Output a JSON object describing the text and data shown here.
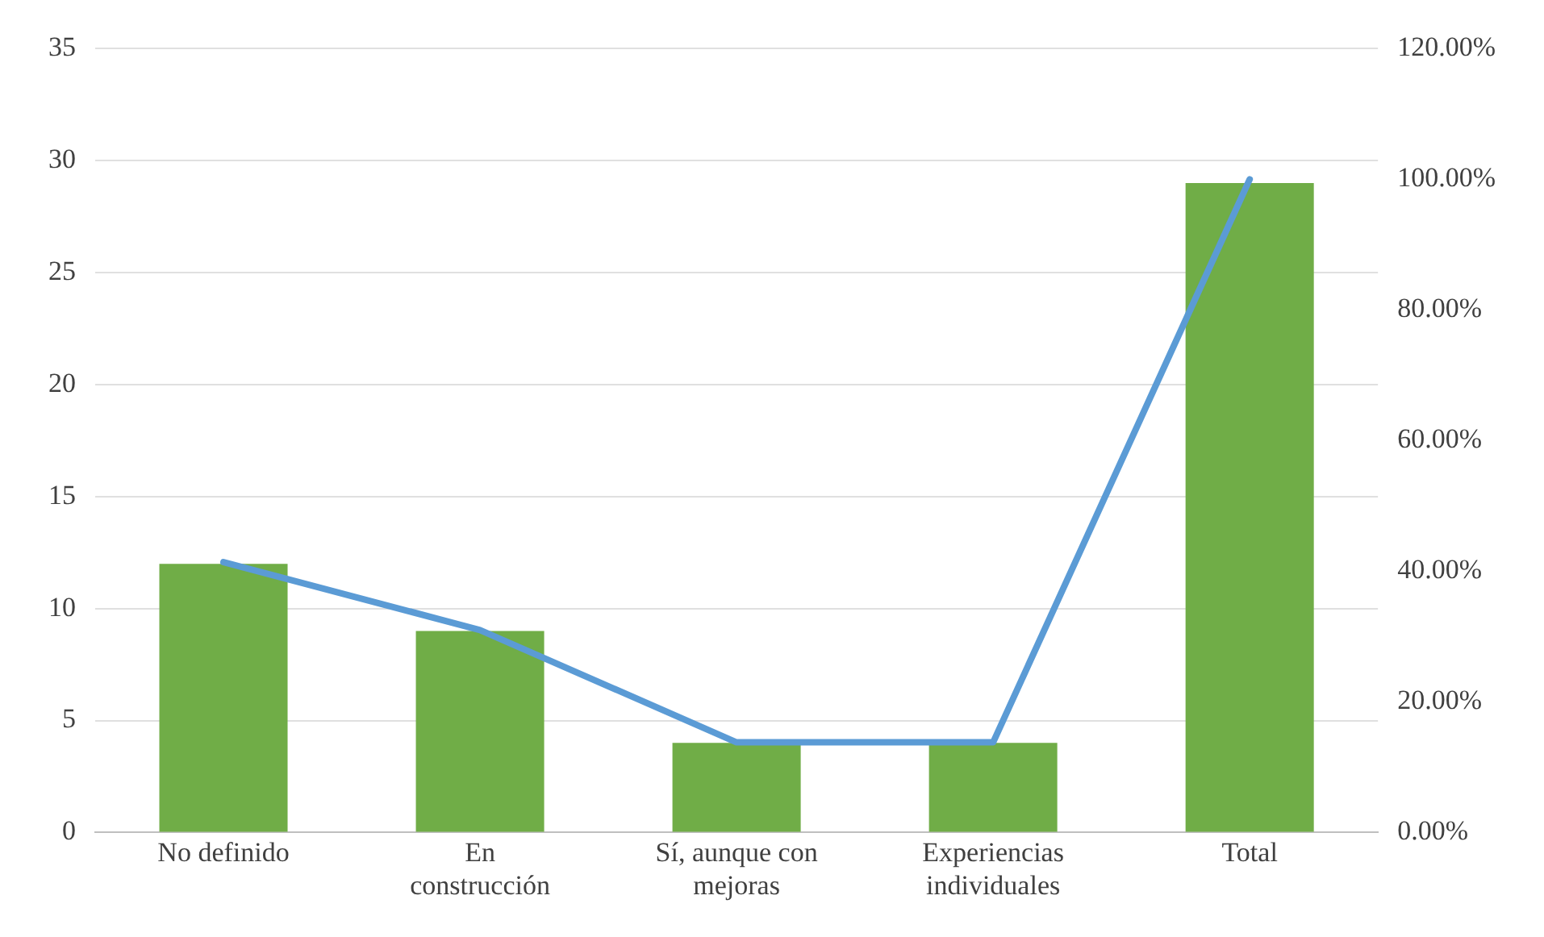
{
  "chart_data": {
    "type": "bar",
    "categories": [
      "No definido",
      "En construcción",
      "Sí, aunque con mejoras",
      "Experiencias individuales",
      "Total"
    ],
    "series": [
      {
        "color": "#70ad47",
        "values": [
          12,
          9,
          4,
          4,
          29
        ]
      },
      {
        "type": "line",
        "axis": "y2",
        "color": "#5b9bd5",
        "values": [
          41.4,
          31,
          13.8,
          13.8,
          100
        ]
      }
    ],
    "ylim": [
      0,
      35
    ],
    "yticks": [
      0,
      5,
      10,
      15,
      20,
      25,
      30,
      35
    ],
    "y2lim": [
      0,
      120
    ],
    "y2ticks": [
      {
        "value": 0,
        "label": "0.00%"
      },
      {
        "value": 20,
        "label": "20.00%"
      },
      {
        "value": 40,
        "label": "40.00%"
      },
      {
        "value": 60,
        "label": "60.00%"
      },
      {
        "value": 80,
        "label": "80.00%"
      },
      {
        "value": 100,
        "label": "100.00%"
      },
      {
        "value": 120,
        "label": "120.00%"
      }
    ],
    "grid": "y",
    "legend": false,
    "marker": "none",
    "line_style": "solid"
  }
}
